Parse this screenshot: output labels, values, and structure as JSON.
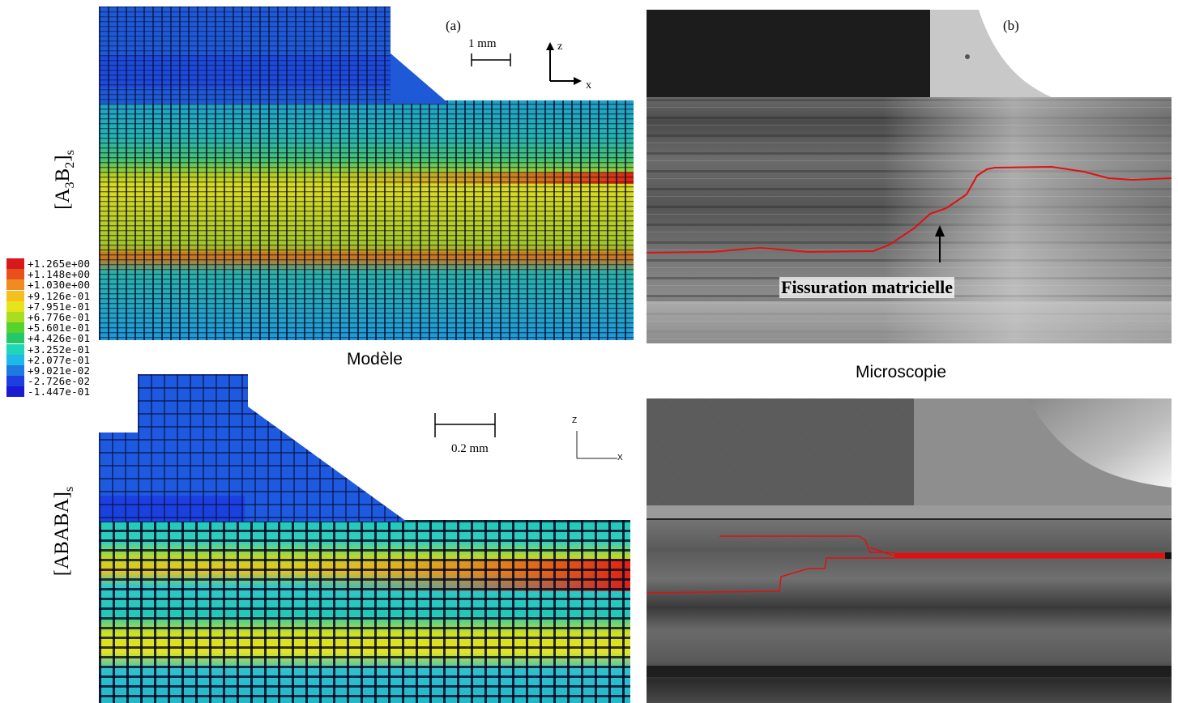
{
  "figure": {
    "panel_a_label": "(a)",
    "panel_b_label": "(b)",
    "row_label_top_base": "[A",
    "row_label_top_sub1": "3",
    "row_label_top_mid": "B",
    "row_label_top_sub2": "2",
    "row_label_top_end": "]",
    "row_label_top_sub3": "s",
    "row_label_bottom_base": "[ABABA]",
    "row_label_bottom_sub": "s",
    "caption_model": "Modèle",
    "caption_microscopy": "Microscopie",
    "annotation_crack": "Fissuration matricielle",
    "scale_top": "1 mm",
    "scale_bottom": "0.2 mm",
    "axis_top_z": "z",
    "axis_top_x": "x",
    "axis_bottom_z": "Z",
    "axis_bottom_x": "X"
  },
  "legend": {
    "values": [
      "+1.265e+00",
      "+1.148e+00",
      "+1.030e+00",
      "+9.126e-01",
      "+7.951e-01",
      "+6.776e-01",
      "+5.601e-01",
      "+4.426e-01",
      "+3.252e-01",
      "+2.077e-01",
      "+9.021e-02",
      "-2.726e-02",
      "-1.447e-01"
    ],
    "colors": [
      "#d7191c",
      "#e8501c",
      "#f18a1f",
      "#f4c01d",
      "#e8e41c",
      "#a8de1f",
      "#55d22c",
      "#22c86a",
      "#1fd6b8",
      "#1fb8e8",
      "#1e7ae0",
      "#1e3fe0",
      "#1a1ad0"
    ]
  },
  "colors": {
    "fe_blue": "#1e5ad8",
    "fe_teal": "#1fb8b0",
    "fe_green": "#8fd02a",
    "fe_yellow": "#e0e020",
    "fe_red": "#e02010",
    "crack_line": "#e01010",
    "micro_dark": "#2a2a2a",
    "micro_grey": "#8a8a8a"
  }
}
